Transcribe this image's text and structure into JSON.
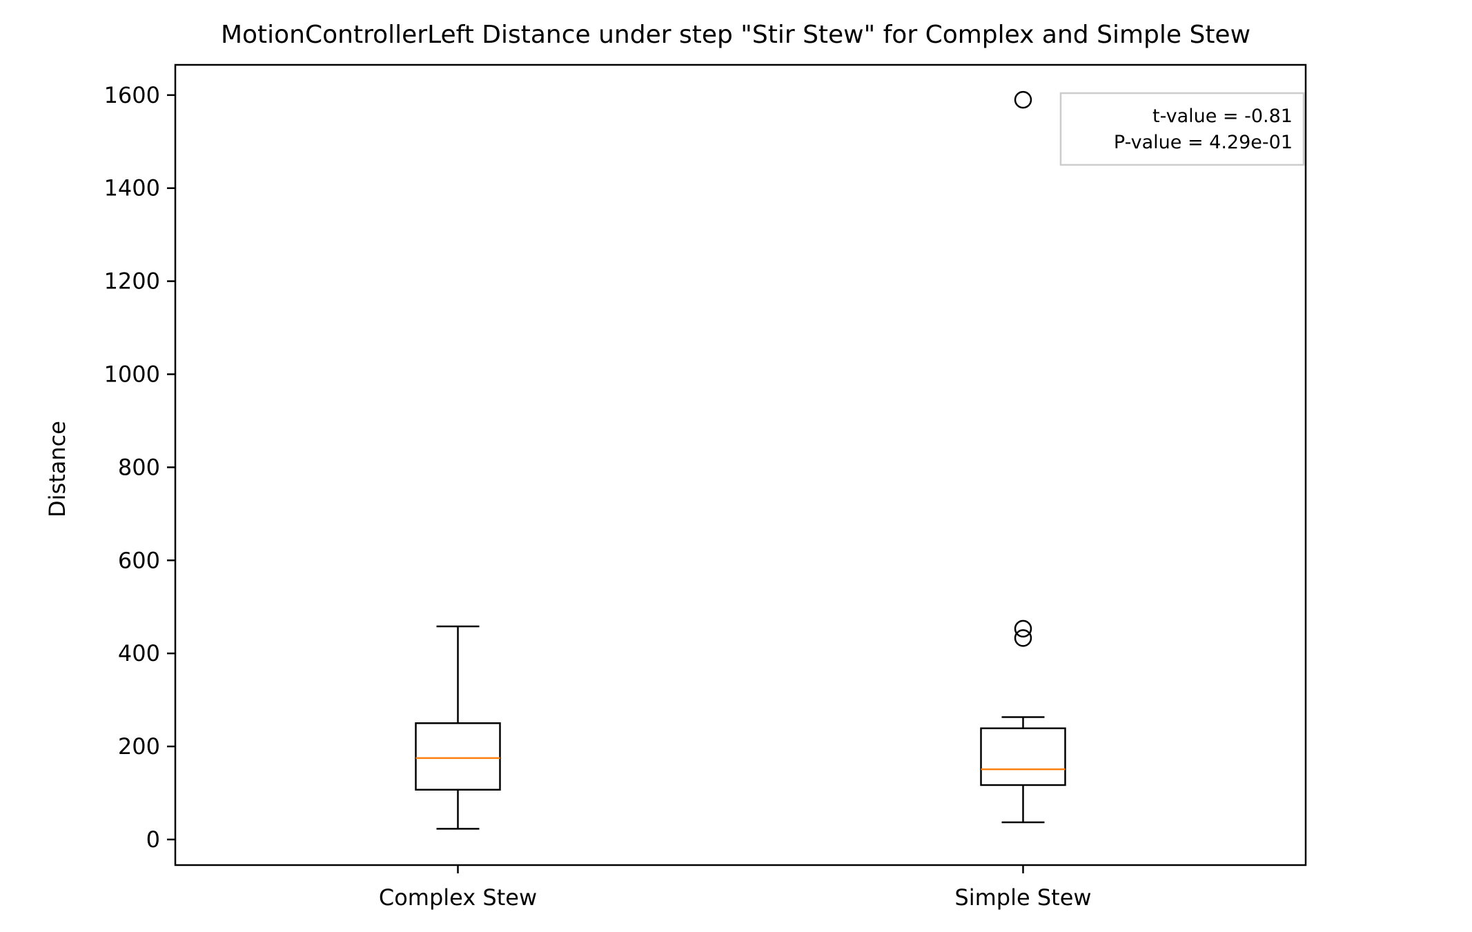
{
  "chart_data": {
    "type": "boxplot",
    "title": "MotionControllerLeft Distance under step \"Stir Stew\" for Complex and Simple Stew",
    "xlabel": "",
    "ylabel": "Distance",
    "ylim": [
      -55,
      1665
    ],
    "yticks": [
      0,
      200,
      400,
      600,
      800,
      1000,
      1200,
      1400,
      1600
    ],
    "categories": [
      "Complex Stew",
      "Simple Stew"
    ],
    "boxes": [
      {
        "name": "Complex Stew",
        "whisker_low": 23,
        "q1": 107,
        "median": 175,
        "q3": 250,
        "whisker_high": 458,
        "outliers": []
      },
      {
        "name": "Simple Stew",
        "whisker_low": 37,
        "q1": 117,
        "median": 151,
        "q3": 239,
        "whisker_high": 263,
        "outliers": [
          1590,
          453,
          433
        ]
      }
    ],
    "annotation": {
      "lines": [
        "t-value = -0.81",
        "P-value = 4.29e-01"
      ],
      "placement": "top-right"
    },
    "grid": false,
    "colors": {
      "box": "#000000",
      "median": "#ff7f0e",
      "annotation_border": "#cccccc"
    }
  }
}
